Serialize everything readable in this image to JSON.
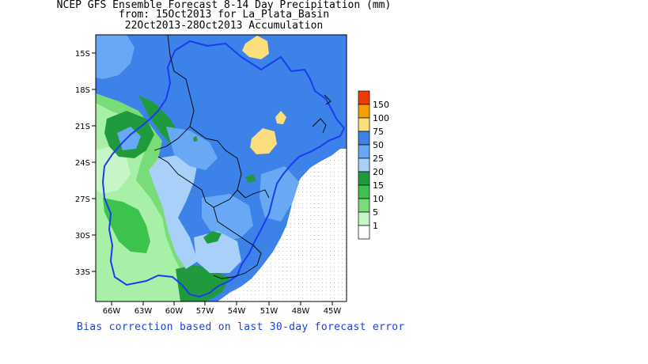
{
  "titles": {
    "line1": "NCEP GFS Ensemble Forecast 8-14 Day Precipitation (mm)",
    "line2": "from: 15Oct2013   for La_Plata_Basin",
    "line3": "22Oct2013-28Oct2013 Accumulation"
  },
  "footer": "Bias correction based on last 30-day forecast error",
  "map": {
    "lat_labels": [
      "15S",
      "18S",
      "21S",
      "24S",
      "27S",
      "30S",
      "33S"
    ],
    "lon_labels": [
      "66W",
      "63W",
      "60W",
      "57W",
      "54W",
      "51W",
      "48W",
      "45W"
    ]
  },
  "legend": {
    "levels": [
      "150",
      "100",
      "75",
      "50",
      "25",
      "20",
      "15",
      "10",
      "5",
      "1"
    ],
    "colors": [
      "#f03c00",
      "#f5a000",
      "#fcde7c",
      "#3d82e8",
      "#68a8f4",
      "#a8d0f8",
      "#1f9a3c",
      "#3cc34e",
      "#78dc78",
      "#c8f5c8",
      "#ffffff"
    ]
  }
}
